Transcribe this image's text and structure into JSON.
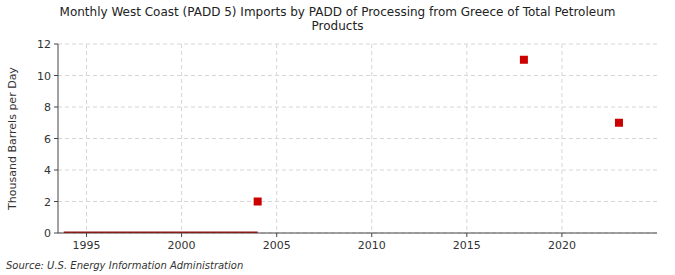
{
  "chart_data": {
    "type": "scatter",
    "title": "Monthly West Coast (PADD 5) Imports by PADD of Processing from Greece of Total Petroleum\nProducts",
    "y_label": "Thousand Barrels per Day",
    "source": "Source: U.S. Energy Information Administration",
    "series": [
      {
        "type": "line",
        "color": "#8b1a1a",
        "x": [
          1993.8,
          2004.0
        ],
        "values": [
          0,
          0
        ]
      },
      {
        "type": "scatter",
        "color": "#cc0000",
        "marker": "square",
        "x": [
          2004,
          2018,
          2023
        ],
        "values": [
          2,
          11,
          7
        ]
      }
    ],
    "xlim": [
      1993.5,
      2025
    ],
    "ylim": [
      0,
      12
    ],
    "xticks": [
      1995,
      2000,
      2005,
      2010,
      2015,
      2020
    ],
    "yticks": [
      0,
      2,
      4,
      6,
      8,
      10,
      12
    ],
    "grid": true
  }
}
